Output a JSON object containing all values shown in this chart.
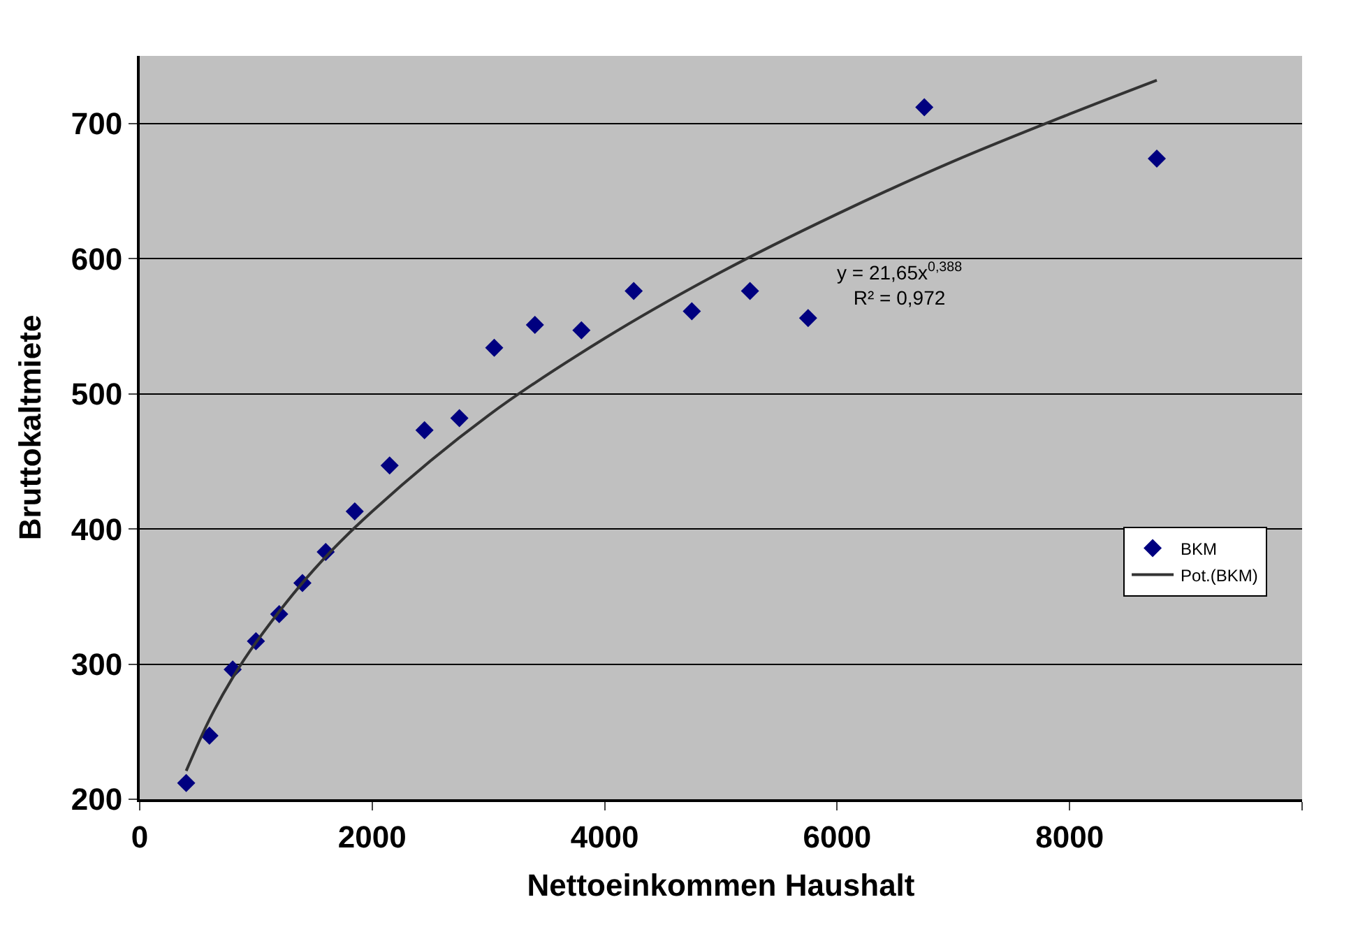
{
  "chart_data": {
    "type": "scatter",
    "xlabel": "Nettoeinkommen Haushalt",
    "ylabel": "Bruttokaltmiete",
    "xlim": [
      0,
      10000
    ],
    "xticks": [
      0,
      2000,
      4000,
      6000,
      8000,
      {
        "value": 10000,
        "label": null
      }
    ],
    "ylim": [
      200,
      750
    ],
    "yticks": [
      200,
      300,
      400,
      500,
      600,
      700
    ],
    "grid": "y",
    "legend": "right",
    "annotations": [
      "y = 21,65x$^{0,388}$\nR² = 0,972"
    ],
    "series": [
      {
        "name": "BKM",
        "marker": "diamond",
        "color": "#000080",
        "x": [
          400,
          600,
          800,
          1000,
          1200,
          1400,
          1600,
          1850,
          2150,
          2450,
          2750,
          3050,
          3400,
          3800,
          4250,
          4750,
          5250,
          5750,
          6750,
          8750
        ],
        "values": [
          212,
          247,
          296,
          317,
          337,
          360,
          383,
          413,
          447,
          473,
          482,
          534,
          551,
          547,
          576,
          561,
          576,
          556,
          712,
          674
        ]
      },
      {
        "name": "Pot.(BKM)",
        "type": "line",
        "marker": "none",
        "color": "#333333",
        "line_style": "solid",
        "x": [
          400,
          600,
          800,
          1000,
          1500,
          2000,
          3000,
          4000,
          5000,
          6000,
          7000,
          8000,
          8750
        ],
        "values": [
          221,
          259,
          290,
          316,
          370,
          413,
          484,
          541,
          590,
          633,
          672,
          707,
          732
        ]
      }
    ]
  }
}
